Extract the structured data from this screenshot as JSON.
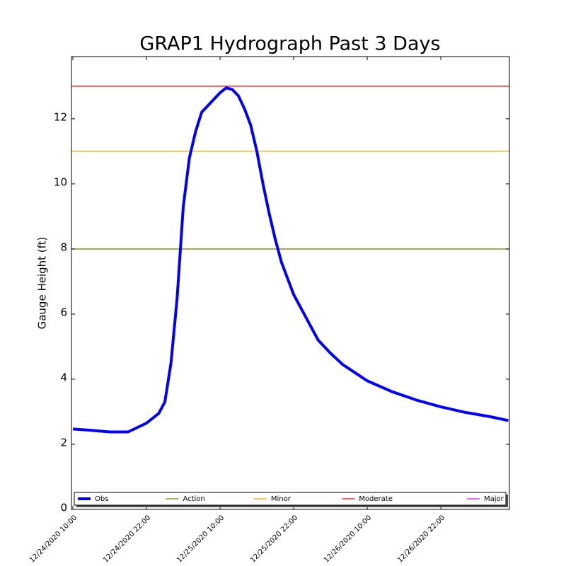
{
  "chart_data": {
    "type": "line",
    "title": "GRAP1 Hydrograph Past 3 Days",
    "y_label": "Gauge Height (ft)",
    "x": [
      "12/24/2020 10:00",
      "12/24/2020 13:00",
      "12/24/2020 16:00",
      "12/24/2020 19:00",
      "12/24/2020 22:00",
      "12/25/2020 00:00",
      "12/25/2020 01:00",
      "12/25/2020 02:00",
      "12/25/2020 03:00",
      "12/25/2020 04:00",
      "12/25/2020 05:00",
      "12/25/2020 06:00",
      "12/25/2020 07:00",
      "12/25/2020 08:00",
      "12/25/2020 09:00",
      "12/25/2020 10:00",
      "12/25/2020 11:00",
      "12/25/2020 12:00",
      "12/25/2020 13:00",
      "12/25/2020 14:00",
      "12/25/2020 15:00",
      "12/25/2020 16:00",
      "12/25/2020 17:00",
      "12/25/2020 18:00",
      "12/25/2020 19:00",
      "12/25/2020 20:00",
      "12/25/2020 22:00",
      "12/26/2020 00:00",
      "12/26/2020 02:00",
      "12/26/2020 04:00",
      "12/26/2020 06:00",
      "12/26/2020 10:00",
      "12/26/2020 14:00",
      "12/26/2020 18:00",
      "12/26/2020 22:00",
      "12/27/2020 02:00",
      "12/27/2020 06:00",
      "12/27/2020 09:00"
    ],
    "series": [
      {
        "name": "Obs",
        "color": "#0000ff",
        "values": [
          2.47,
          2.43,
          2.38,
          2.38,
          2.65,
          2.95,
          3.3,
          4.5,
          6.5,
          9.3,
          10.8,
          11.6,
          12.2,
          12.4,
          12.6,
          12.8,
          12.95,
          12.9,
          12.7,
          12.3,
          11.8,
          11.0,
          10.0,
          9.1,
          8.3,
          7.6,
          6.6,
          5.9,
          5.2,
          4.8,
          4.45,
          3.95,
          3.62,
          3.36,
          3.15,
          2.98,
          2.85,
          2.73
        ]
      }
    ],
    "thresholds": [
      {
        "name": "Action",
        "color": "#808000",
        "value": 8
      },
      {
        "name": "Minor",
        "color": "#ffa500",
        "value": 11
      },
      {
        "name": "Moderate",
        "color": "#ff0000",
        "value": 13
      },
      {
        "name": "Major",
        "color": "#ff00ff"
      }
    ],
    "xlim": [
      "12/24/2020 09:46",
      "12/27/2020 09:11"
    ],
    "xticks": [
      "12/24/2020 10:00",
      "12/24/2020 22:00",
      "12/25/2020 10:00",
      "12/25/2020 22:00",
      "12/26/2020 10:00",
      "12/26/2020 22:00"
    ],
    "ylim": [
      0,
      13.91
    ],
    "yticks": [
      0,
      2,
      4,
      6,
      8,
      10,
      12
    ],
    "legend": "lower center"
  }
}
